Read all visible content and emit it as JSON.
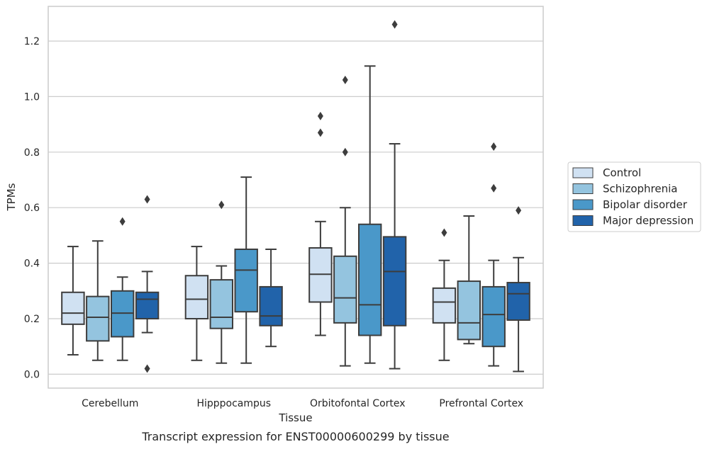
{
  "caption": "Transcript expression for ENST00000600299 by tissue",
  "chart_data": {
    "type": "box",
    "xlabel": "Tissue",
    "ylabel": "TPMs",
    "ylim": [
      -0.05,
      1.325
    ],
    "yticks": [
      0.0,
      0.2,
      0.4,
      0.6,
      0.8,
      1.0,
      1.2
    ],
    "ytick_labels": [
      "0.0",
      "0.2",
      "0.4",
      "0.6",
      "0.8",
      "1.0",
      "1.2"
    ],
    "grid": "horizontal",
    "legend_position": "right",
    "categories": [
      "Cerebellum",
      "Hipppocampus",
      "Orbitofontal Cortex",
      "Prefrontal Cortex"
    ],
    "series": [
      {
        "name": "Control",
        "color": "#d0e1f2",
        "boxes": [
          {
            "whislo": 0.07,
            "q1": 0.18,
            "med": 0.22,
            "q3": 0.295,
            "whishi": 0.46,
            "fliers": []
          },
          {
            "whislo": 0.05,
            "q1": 0.2,
            "med": 0.27,
            "q3": 0.355,
            "whishi": 0.46,
            "fliers": []
          },
          {
            "whislo": 0.14,
            "q1": 0.26,
            "med": 0.36,
            "q3": 0.455,
            "whishi": 0.55,
            "fliers": [
              0.87,
              0.93
            ]
          },
          {
            "whislo": 0.05,
            "q1": 0.185,
            "med": 0.26,
            "q3": 0.31,
            "whishi": 0.41,
            "fliers": [
              0.51
            ]
          }
        ]
      },
      {
        "name": "Schizophrenia",
        "color": "#94c4df",
        "boxes": [
          {
            "whislo": 0.05,
            "q1": 0.12,
            "med": 0.205,
            "q3": 0.28,
            "whishi": 0.48,
            "fliers": []
          },
          {
            "whislo": 0.04,
            "q1": 0.165,
            "med": 0.205,
            "q3": 0.34,
            "whishi": 0.39,
            "fliers": [
              0.61
            ]
          },
          {
            "whislo": 0.03,
            "q1": 0.185,
            "med": 0.275,
            "q3": 0.425,
            "whishi": 0.6,
            "fliers": [
              0.8,
              1.06
            ]
          },
          {
            "whislo": 0.11,
            "q1": 0.125,
            "med": 0.185,
            "q3": 0.335,
            "whishi": 0.57,
            "fliers": []
          }
        ]
      },
      {
        "name": "Bipolar disorder",
        "color": "#4a98c9",
        "boxes": [
          {
            "whislo": 0.05,
            "q1": 0.135,
            "med": 0.22,
            "q3": 0.3,
            "whishi": 0.35,
            "fliers": [
              0.55
            ]
          },
          {
            "whislo": 0.04,
            "q1": 0.225,
            "med": 0.375,
            "q3": 0.45,
            "whishi": 0.71,
            "fliers": []
          },
          {
            "whislo": 0.04,
            "q1": 0.14,
            "med": 0.25,
            "q3": 0.54,
            "whishi": 1.11,
            "fliers": []
          },
          {
            "whislo": 0.03,
            "q1": 0.1,
            "med": 0.215,
            "q3": 0.315,
            "whishi": 0.41,
            "fliers": [
              0.67,
              0.82
            ]
          }
        ]
      },
      {
        "name": "Major depression",
        "color": "#2163aa",
        "boxes": [
          {
            "whislo": 0.15,
            "q1": 0.2,
            "med": 0.27,
            "q3": 0.295,
            "whishi": 0.37,
            "fliers": [
              0.02,
              0.63
            ]
          },
          {
            "whislo": 0.1,
            "q1": 0.175,
            "med": 0.21,
            "q3": 0.315,
            "whishi": 0.45,
            "fliers": []
          },
          {
            "whislo": 0.02,
            "q1": 0.175,
            "med": 0.37,
            "q3": 0.495,
            "whishi": 0.83,
            "fliers": [
              1.26
            ]
          },
          {
            "whislo": 0.01,
            "q1": 0.195,
            "med": 0.29,
            "q3": 0.33,
            "whishi": 0.42,
            "fliers": [
              0.59
            ]
          }
        ]
      }
    ]
  }
}
